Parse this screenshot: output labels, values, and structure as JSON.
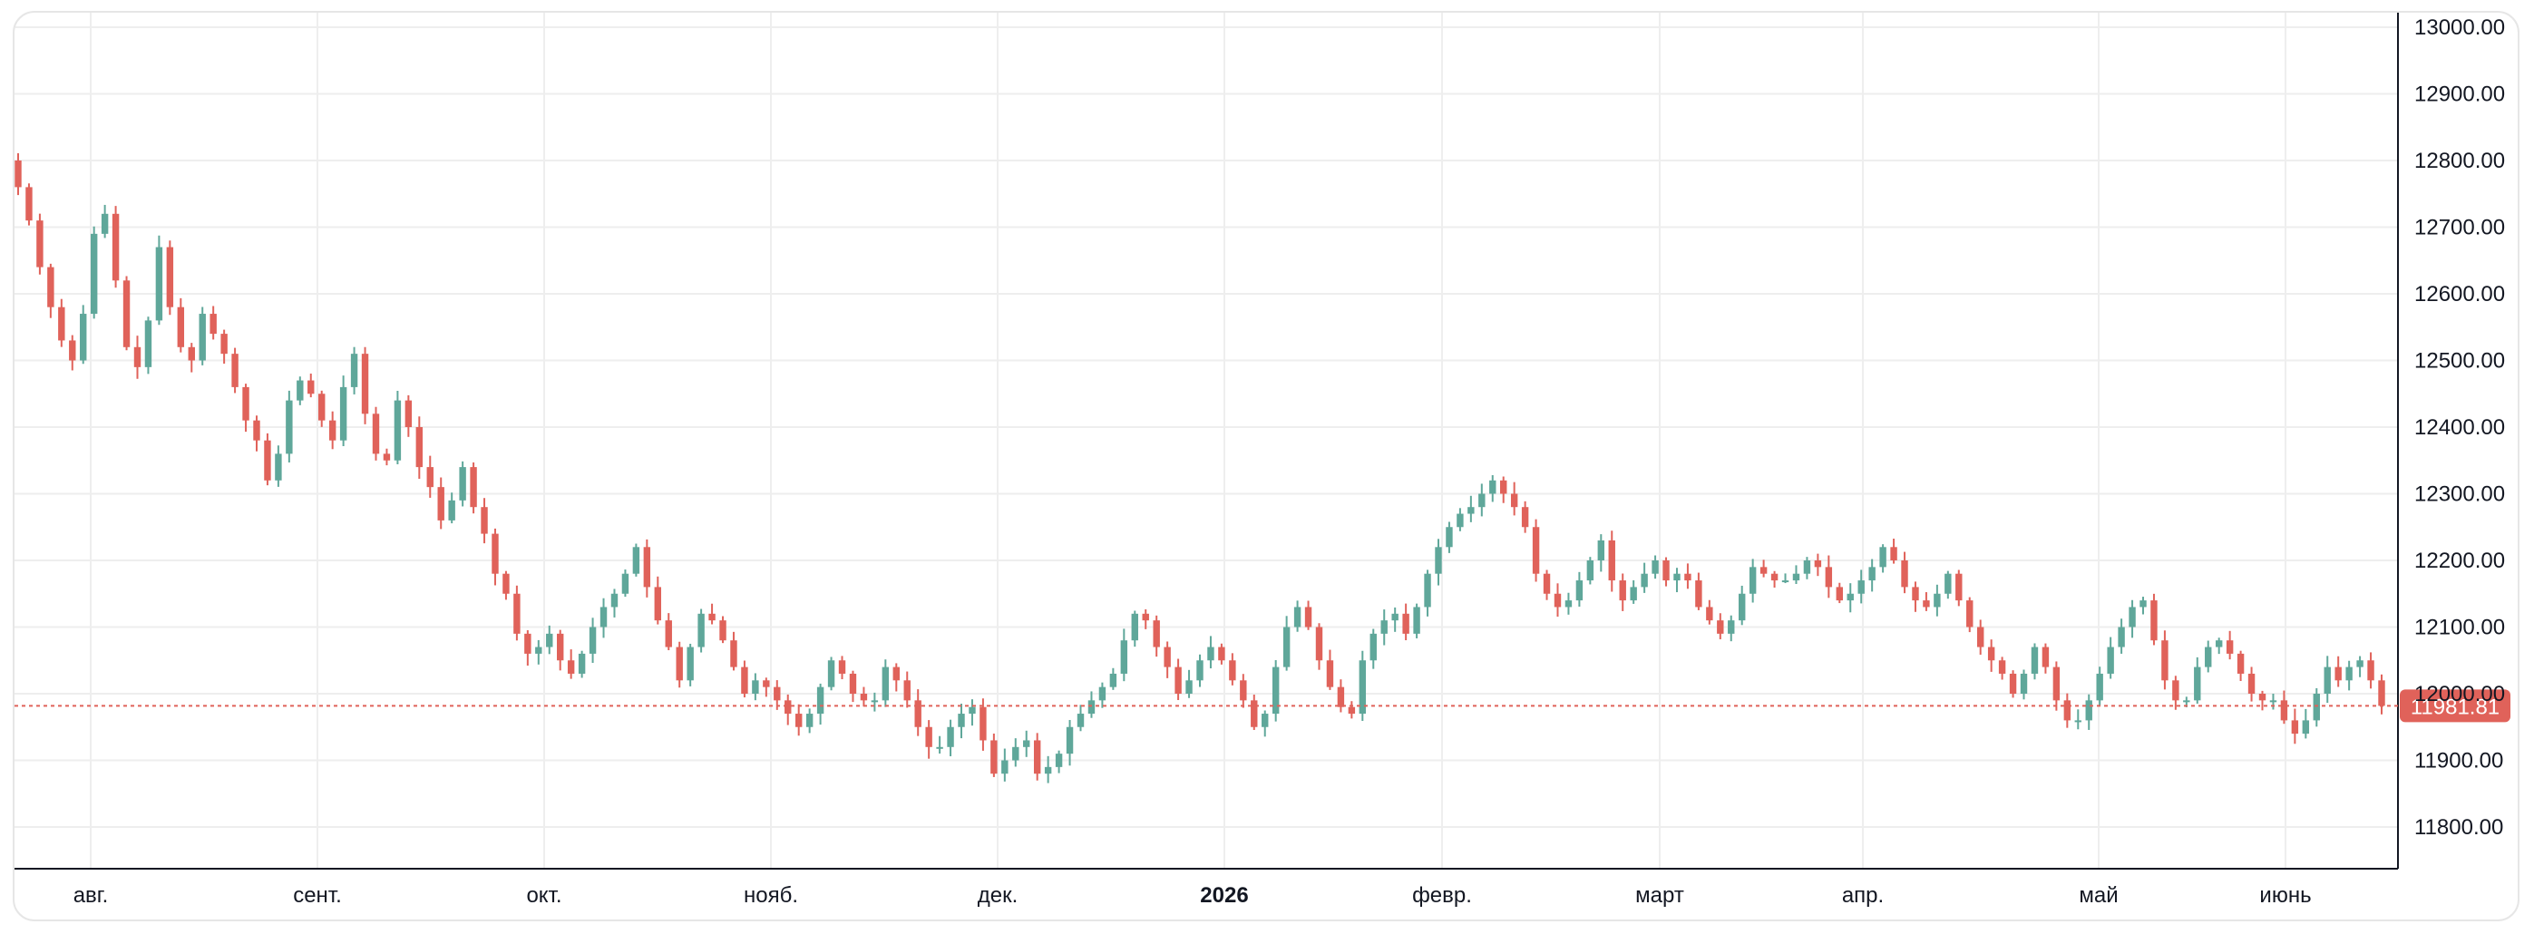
{
  "chart_data": {
    "type": "candlestick",
    "y_axis": {
      "range": [
        11750,
        13000
      ],
      "ticks": [
        13000,
        12900,
        12800,
        12700,
        12600,
        12500,
        12400,
        12300,
        12200,
        12100,
        12000,
        11900,
        11800
      ],
      "tick_labels": [
        "13000.00",
        "12900.00",
        "12800.00",
        "12700.00",
        "12600.00",
        "12500.00",
        "12400.00",
        "12300.00",
        "12200.00",
        "12100.00",
        "12000.00",
        "11900.00",
        "11800.00"
      ],
      "position": "right"
    },
    "x_axis": {
      "tick_labels": [
        {
          "label": "авг.",
          "bold": false
        },
        {
          "label": "сент.",
          "bold": false
        },
        {
          "label": "окт.",
          "bold": false
        },
        {
          "label": "нояб.",
          "bold": false
        },
        {
          "label": "дек.",
          "bold": false
        },
        {
          "label": "2026",
          "bold": true
        },
        {
          "label": "февр.",
          "bold": false
        },
        {
          "label": "март",
          "bold": false
        },
        {
          "label": "апр.",
          "bold": false
        },
        {
          "label": "май",
          "bold": false
        },
        {
          "label": "июнь",
          "bold": false
        }
      ]
    },
    "grid": true,
    "colors": {
      "up": "#5fa79a",
      "down": "#e0625a",
      "grid": "#eeeeee",
      "axis": "#131722",
      "last_price": "#e0625a"
    },
    "last_price": {
      "value": 11981.81,
      "label": "11981.81"
    },
    "close": [
      12760,
      12710,
      12640,
      12580,
      12530,
      12500,
      12570,
      12690,
      12720,
      12620,
      12520,
      12490,
      12560,
      12670,
      12580,
      12520,
      12500,
      12570,
      12540,
      12510,
      12460,
      12410,
      12380,
      12320,
      12360,
      12440,
      12470,
      12450,
      12410,
      12380,
      12460,
      12510,
      12420,
      12360,
      12350,
      12440,
      12400,
      12340,
      12310,
      12260,
      12290,
      12340,
      12280,
      12240,
      12180,
      12150,
      12090,
      12060,
      12070,
      12090,
      12050,
      12030,
      12060,
      12100,
      12130,
      12150,
      12180,
      12220,
      12160,
      12110,
      12070,
      12020,
      12070,
      12120,
      12110,
      12080,
      12040,
      12000,
      12020,
      12010,
      11990,
      11970,
      11950,
      11970,
      12010,
      12050,
      12030,
      12000,
      11990,
      11990,
      12040,
      12020,
      11990,
      11950,
      11920,
      11920,
      11950,
      11970,
      11980,
      11930,
      11880,
      11900,
      11920,
      11930,
      11880,
      11890,
      11910,
      11950,
      11970,
      11990,
      12010,
      12030,
      12080,
      12120,
      12110,
      12070,
      12040,
      12000,
      12020,
      12050,
      12070,
      12050,
      12020,
      11990,
      11950,
      11970,
      12040,
      12100,
      12130,
      12100,
      12050,
      12010,
      11980,
      11970,
      12050,
      12090,
      12110,
      12120,
      12090,
      12130,
      12180,
      12220,
      12250,
      12270,
      12280,
      12300,
      12320,
      12300,
      12280,
      12250,
      12180,
      12150,
      12130,
      12140,
      12170,
      12200,
      12230,
      12170,
      12140,
      12160,
      12180,
      12200,
      12170,
      12180,
      12170,
      12130,
      12110,
      12090,
      12110,
      12150,
      12190,
      12180,
      12170,
      12170,
      12180,
      12200,
      12190,
      12160,
      12140,
      12150,
      12170,
      12190,
      12220,
      12200,
      12160,
      12140,
      12130,
      12150,
      12180,
      12140,
      12100,
      12070,
      12050,
      12030,
      12000,
      12030,
      12070,
      12040,
      11990,
      11960,
      11960,
      11990,
      12030,
      12070,
      12100,
      12130,
      12140,
      12080,
      12020,
      11990,
      11990,
      12040,
      12070,
      12080,
      12060,
      12030,
      12000,
      11990,
      11990,
      11960,
      11940,
      11960,
      12000,
      12040,
      12020,
      12040,
      12050,
      12020,
      11981.81
    ]
  }
}
